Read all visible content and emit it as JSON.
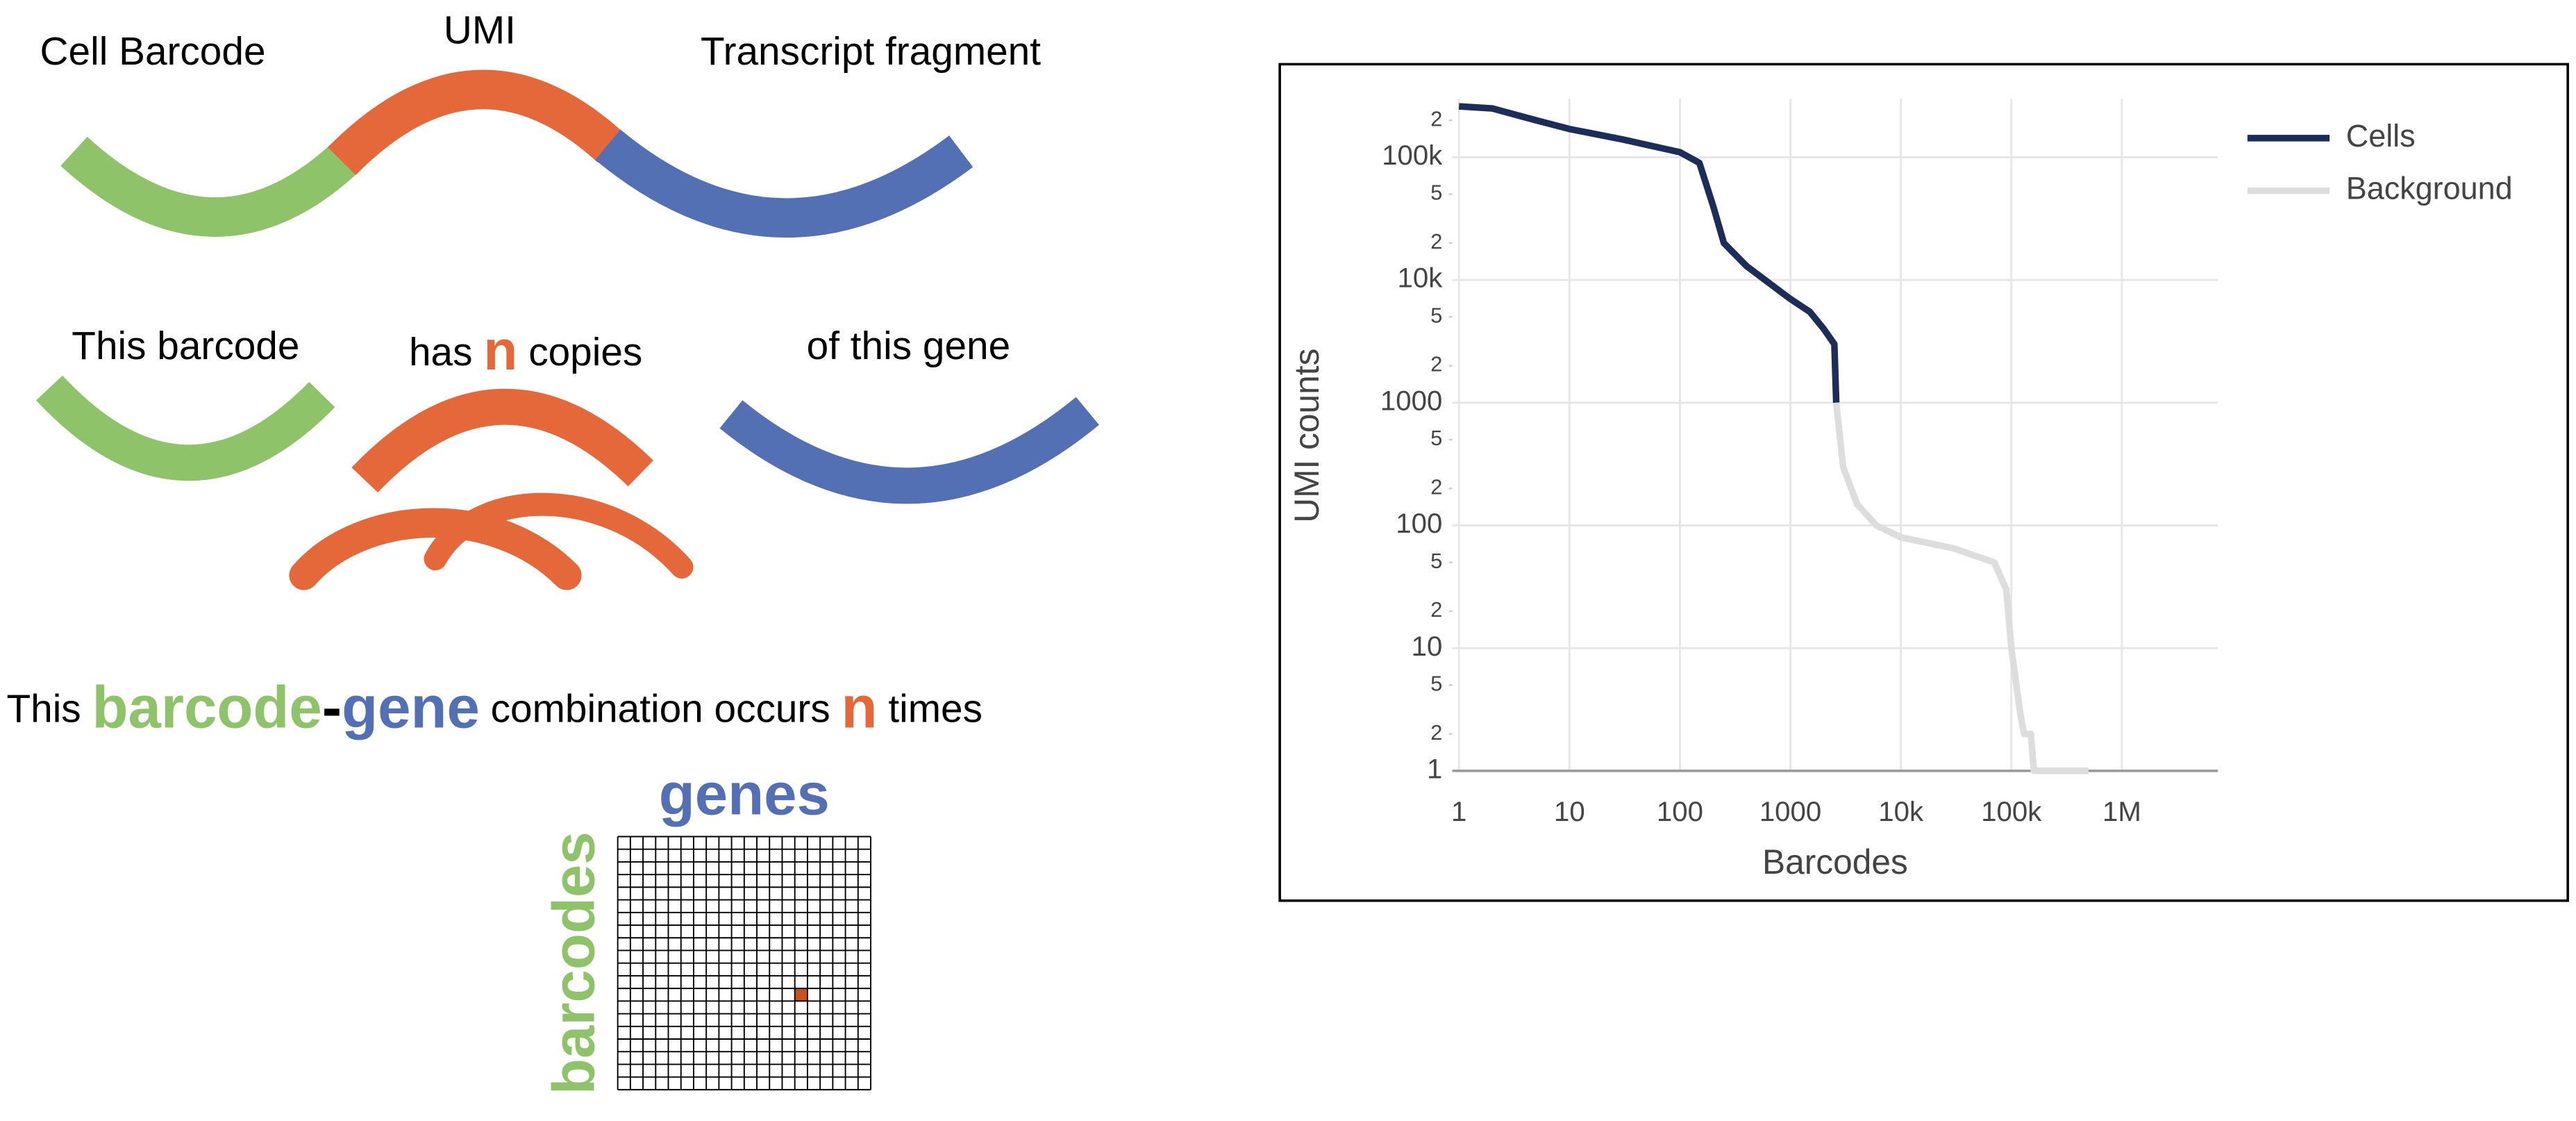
{
  "diagram": {
    "row1": {
      "left": "Cell Barcode",
      "middle": "UMI",
      "right": "Transcript fragment"
    },
    "row2": {
      "left": "This barcode",
      "middle_pre": "has",
      "middle_n": "n",
      "middle_post": "copies",
      "right": "of this gene"
    },
    "sentence": {
      "w1": "This",
      "w2": "barcode",
      "w3": "-",
      "w4": "gene",
      "w5": "combination occurs",
      "w6": "n",
      "w7": "times"
    },
    "matrix": {
      "columns": "genes",
      "rows": "barcodes"
    }
  },
  "chart_data": {
    "type": "line",
    "xlabel": "Barcodes",
    "ylabel": "UMI counts",
    "log_x": true,
    "log_y": true,
    "grid": true,
    "legend": "right",
    "xlim": [
      0.87,
      7400000
    ],
    "ylim": [
      1,
      300000
    ],
    "xticks": [
      1,
      10,
      100,
      1000,
      {
        "value": 10000,
        "label": "10k"
      },
      {
        "value": 100000,
        "label": "100k"
      },
      {
        "value": 1000000,
        "label": "1M"
      }
    ],
    "yticks": [
      1,
      2,
      5,
      10,
      {
        "value": 20,
        "label": "2"
      },
      {
        "value": 50,
        "label": "5"
      },
      100,
      {
        "value": 200,
        "label": "2"
      },
      {
        "value": 500,
        "label": "5"
      },
      1000,
      {
        "value": 2000,
        "label": "2"
      },
      {
        "value": 5000,
        "label": "5"
      },
      {
        "value": 10000,
        "label": "10k"
      },
      {
        "value": 20000,
        "label": "2"
      },
      {
        "value": 50000,
        "label": "5"
      },
      {
        "value": 100000,
        "label": "100k"
      },
      {
        "value": 200000,
        "label": "2"
      }
    ],
    "series": [
      {
        "name": "Cells",
        "color": "#1c2d5a",
        "x": [
          1,
          2,
          5,
          10,
          30,
          100,
          150,
          200,
          250,
          400,
          1000,
          1500,
          2000,
          2500,
          2600
        ],
        "values": [
          260000,
          250000,
          200000,
          170000,
          140000,
          110000,
          90000,
          40000,
          20000,
          13000,
          7000,
          5500,
          4000,
          3000,
          1000
        ]
      },
      {
        "name": "Background",
        "color": "#dddddd",
        "x": [
          2600,
          3000,
          4000,
          6000,
          10000,
          30000,
          70000,
          90000,
          100000,
          120000,
          130000,
          150000,
          160000,
          500000
        ],
        "values": [
          1000,
          300,
          150,
          100,
          80,
          65,
          50,
          30,
          10,
          3,
          2,
          2,
          1,
          1
        ]
      }
    ]
  }
}
